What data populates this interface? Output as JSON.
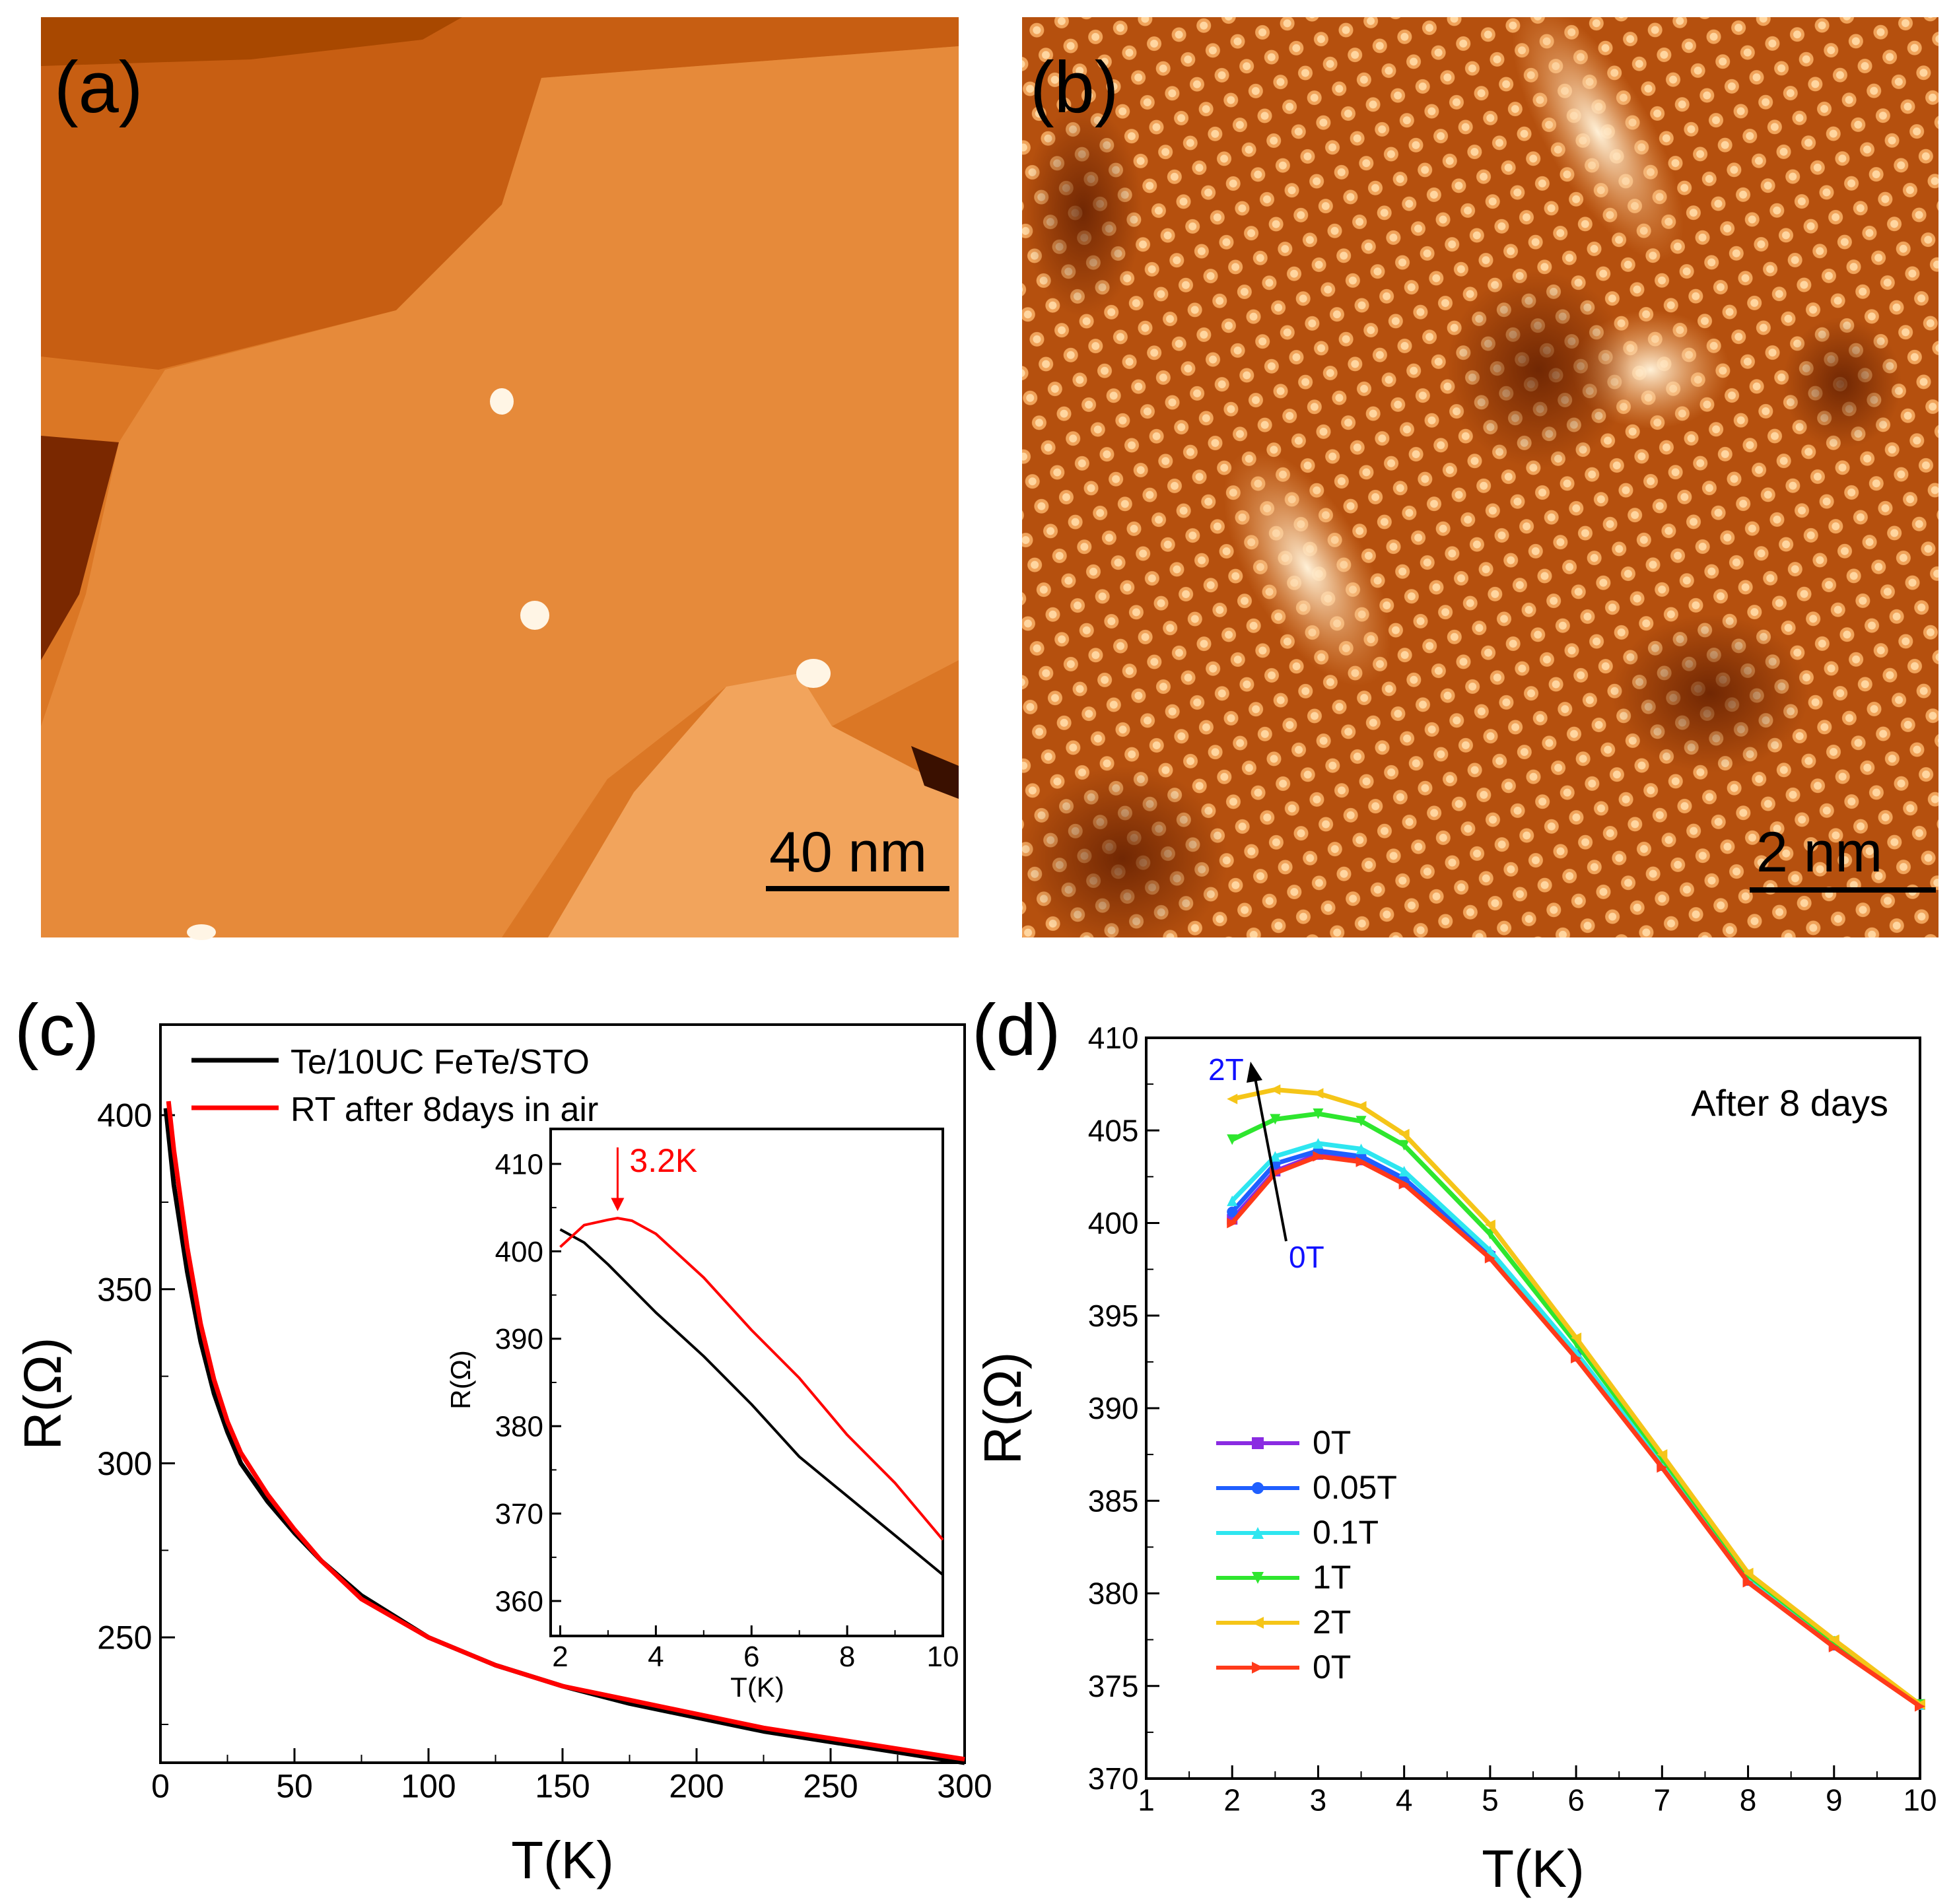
{
  "panels": {
    "a": {
      "label": "(a)",
      "scale_bar": "40 nm"
    },
    "b": {
      "label": "(b)",
      "scale_bar": "2 nm"
    },
    "c": {
      "label": "(c)"
    },
    "d": {
      "label": "(d)"
    }
  },
  "colors": {
    "stm_light": "#f6b06a",
    "stm_mid": "#d76a1c",
    "stm_dark": "#6a2200",
    "black_series": "#000000",
    "red_series": "#ff0000",
    "d_0T": "#8a2be2",
    "d_0_05T": "#1f5fff",
    "d_0_1T": "#2ee6f0",
    "d_1T": "#2ee62e",
    "d_2T": "#f5c518",
    "d_0T_b": "#ff3a1a",
    "annot_blue": "#1010ff"
  },
  "chart_data": [
    {
      "id": "c",
      "type": "line",
      "xlabel": "T(K)",
      "ylabel": "R(Ω)",
      "xlim": [
        0,
        300
      ],
      "ylim": [
        214,
        426
      ],
      "xticks": [
        "0",
        "50",
        "100",
        "150",
        "200",
        "250",
        "300"
      ],
      "yticks": [
        "250",
        "300",
        "350",
        "400"
      ],
      "legend": [
        "Te/10UC FeTe/STO",
        "RT after 8days in air"
      ],
      "series": [
        {
          "name": "Te/10UC FeTe/STO",
          "x": [
            2,
            5,
            10,
            15,
            20,
            25,
            30,
            40,
            50,
            60,
            75,
            100,
            125,
            150,
            175,
            200,
            225,
            250,
            275,
            300
          ],
          "y": [
            402,
            380,
            355,
            335,
            320,
            309,
            300,
            289,
            280,
            272,
            262,
            250,
            242,
            236,
            231,
            227,
            223,
            220,
            217,
            214
          ]
        },
        {
          "name": "RT after 8days in air",
          "x": [
            3,
            5,
            10,
            15,
            20,
            25,
            30,
            40,
            50,
            60,
            75,
            100,
            125,
            150,
            175,
            200,
            225,
            250,
            275,
            300
          ],
          "y": [
            404,
            390,
            362,
            340,
            324,
            312,
            303,
            291,
            281,
            272,
            261,
            250,
            242,
            236,
            232,
            228,
            224,
            221,
            218,
            215
          ]
        }
      ],
      "inset": {
        "xlabel": "T(K)",
        "ylabel": "R(Ω)",
        "xlim": [
          1.8,
          10
        ],
        "ylim": [
          356,
          414
        ],
        "xticks": [
          "2",
          "4",
          "6",
          "8",
          "10"
        ],
        "yticks": [
          "360",
          "370",
          "380",
          "390",
          "400",
          "410"
        ],
        "annotation": "3.2K",
        "annotation_x": 3.2,
        "series": [
          {
            "name": "Te/10UC FeTe/STO",
            "x": [
              2,
              2.5,
              3,
              4,
              5,
              6,
              7,
              8,
              9,
              10
            ],
            "y": [
              402.5,
              401,
              398.5,
              393,
              388,
              382.5,
              376.5,
              372,
              367.5,
              363
            ]
          },
          {
            "name": "RT after 8days in air",
            "x": [
              2,
              2.5,
              3,
              3.2,
              3.5,
              4,
              5,
              6,
              7,
              8,
              9,
              10
            ],
            "y": [
              400.5,
              403,
              403.6,
              403.8,
              403.5,
              402,
              397,
              391,
              385.5,
              379,
              373.5,
              367
            ]
          }
        ]
      }
    },
    {
      "id": "d",
      "type": "line",
      "xlabel": "T(K)",
      "ylabel": "R(Ω)",
      "xlim": [
        1,
        10
      ],
      "ylim": [
        370,
        410
      ],
      "xticks": [
        "1",
        "2",
        "3",
        "4",
        "5",
        "6",
        "7",
        "8",
        "9",
        "10"
      ],
      "yticks": [
        "370",
        "375",
        "380",
        "385",
        "390",
        "395",
        "400",
        "405",
        "410"
      ],
      "title": "After 8 days",
      "annotation_top": "2T",
      "annotation_bottom": "0T",
      "series": [
        {
          "name": "0T",
          "color": "#8a2be2",
          "marker": "square",
          "x": [
            2,
            2.5,
            3,
            3.5,
            4,
            5,
            6,
            7,
            8,
            9,
            10
          ],
          "y": [
            400.2,
            402.8,
            403.7,
            403.4,
            402.2,
            398.2,
            392.8,
            386.9,
            380.7,
            377.2,
            374
          ]
        },
        {
          "name": "0.05T",
          "color": "#1f5fff",
          "marker": "circle",
          "x": [
            2,
            2.5,
            3,
            3.5,
            4,
            5,
            6,
            7,
            8,
            9,
            10
          ],
          "y": [
            400.6,
            403.2,
            403.9,
            403.6,
            402.4,
            398.3,
            392.9,
            386.9,
            380.7,
            377.2,
            374
          ]
        },
        {
          "name": "0.1T",
          "color": "#2ee6f0",
          "marker": "triangle-up",
          "x": [
            2,
            2.5,
            3,
            3.5,
            4,
            5,
            6,
            7,
            8,
            9,
            10
          ],
          "y": [
            401.2,
            403.6,
            404.3,
            404,
            402.8,
            398.5,
            393,
            387,
            380.8,
            377.3,
            374
          ]
        },
        {
          "name": "1T",
          "color": "#2ee62e",
          "marker": "triangle-down",
          "x": [
            2,
            2.5,
            3,
            3.5,
            4,
            5,
            6,
            7,
            8,
            9,
            10
          ],
          "y": [
            404.5,
            405.6,
            405.9,
            405.5,
            404.2,
            399.4,
            393.5,
            387.3,
            381,
            377.4,
            374
          ]
        },
        {
          "name": "2T",
          "color": "#f5c518",
          "marker": "triangle-left",
          "x": [
            2,
            2.5,
            3,
            3.5,
            4,
            5,
            6,
            7,
            8,
            9,
            10
          ],
          "y": [
            406.7,
            407.2,
            407,
            406.3,
            404.8,
            399.9,
            393.8,
            387.5,
            381.1,
            377.5,
            374
          ]
        },
        {
          "name": "0T",
          "color": "#ff3a1a",
          "marker": "triangle-right",
          "x": [
            2,
            2.5,
            3,
            3.5,
            4,
            5,
            6,
            7,
            8,
            9,
            10
          ],
          "y": [
            400,
            402.7,
            403.6,
            403.3,
            402.1,
            398.1,
            392.7,
            386.8,
            380.6,
            377.1,
            373.9
          ]
        }
      ]
    }
  ]
}
